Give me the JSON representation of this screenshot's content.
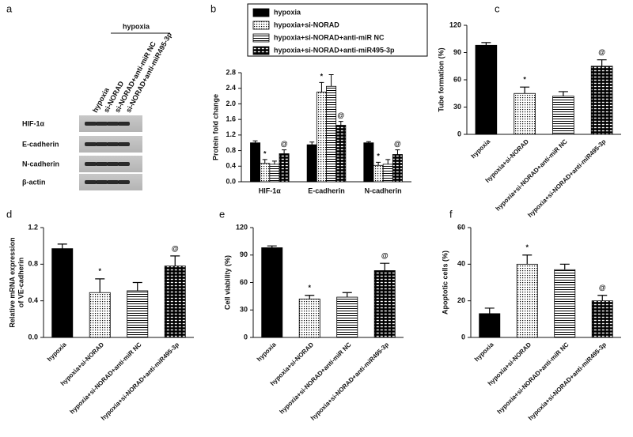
{
  "blot": {
    "panel": "a",
    "group_label": "hypoxia",
    "lanes": [
      "hypoxia",
      "si-NORAD",
      "si-NORAD+anti-miR NC",
      "si-NORAD+anti-miR495-3p"
    ],
    "rows": [
      "HIF-1α",
      "E-cadherin",
      "N-cadherin",
      "β-actin"
    ]
  },
  "chart_data": [
    {
      "type": "bar",
      "panel": "b",
      "ylabel": "Protein fold change",
      "categories": [
        "HIF-1α",
        "E-cadherin",
        "N-cadherin"
      ],
      "series": [
        {
          "name": "hypoxia",
          "color": "#000000",
          "pattern": "solid",
          "values": [
            1.0,
            0.95,
            1.0
          ],
          "errors": [
            0.05,
            0.07,
            0.03
          ]
        },
        {
          "name": "hypoxia+si-NORAD",
          "color": "#000000",
          "pattern": "dots",
          "values": [
            0.47,
            2.3,
            0.42
          ],
          "errors": [
            0.1,
            0.25,
            0.08
          ],
          "annotations": [
            "*",
            "*",
            "*"
          ]
        },
        {
          "name": "hypoxia+si-NORAD+anti-miR NC",
          "color": "#000000",
          "pattern": "hlines",
          "values": [
            0.45,
            2.45,
            0.45
          ],
          "errors": [
            0.08,
            0.3,
            0.12
          ]
        },
        {
          "name": "hypoxia+si-NORAD+anti-miR495-3p",
          "color": "#000000",
          "pattern": "bricks",
          "values": [
            0.72,
            1.45,
            0.7
          ],
          "errors": [
            0.1,
            0.1,
            0.12
          ],
          "annotations": [
            "@",
            "@",
            "@"
          ]
        }
      ],
      "ylim": [
        0,
        2.8
      ],
      "yticks": [
        {
          "value": 0,
          "label": "0.0"
        },
        0.4,
        0.8,
        1.2,
        1.6,
        {
          "value": 2,
          "label": "2.0"
        },
        2.4,
        2.8
      ],
      "legend": "top"
    },
    {
      "type": "bar",
      "panel": "c",
      "ylabel": "Tube formation (%)",
      "categories": [
        "hypoxia",
        "hypoxia+si-NORAD",
        "hypoxia+si-NORAD+anti-miR NC",
        "hypoxia+si-NORAD+anti-miR495-3p"
      ],
      "values": [
        98,
        45,
        42,
        75
      ],
      "errors": [
        3,
        7,
        5,
        7
      ],
      "annotations": [
        null,
        "*",
        null,
        "@"
      ],
      "patterns": [
        "solid",
        "dots",
        "hlines",
        "bricks"
      ],
      "color": "#000000",
      "ylim": [
        0,
        120
      ],
      "yticks": [
        0,
        30,
        60,
        90,
        120
      ]
    },
    {
      "type": "bar",
      "panel": "d",
      "ylabel": [
        "Relative mRNA expression",
        "of VE-cadherin"
      ],
      "categories": [
        "hypoxia",
        "hypoxia+si-NORAD",
        "hypoxia+si-NORAD+anti-miR NC",
        "hypoxia+si-NORAD+anti-miR495-3p"
      ],
      "values": [
        0.97,
        0.49,
        0.51,
        0.78
      ],
      "errors": [
        0.05,
        0.15,
        0.09,
        0.11
      ],
      "annotations": [
        null,
        "*",
        null,
        "@"
      ],
      "patterns": [
        "solid",
        "dots",
        "hlines",
        "bricks"
      ],
      "color": "#000000",
      "ylim": [
        0,
        1.2
      ],
      "yticks": [
        {
          "value": 0,
          "label": "0.0"
        },
        0.4,
        0.8,
        1.2
      ]
    },
    {
      "type": "bar",
      "panel": "e",
      "ylabel": "Cell viability (%)",
      "categories": [
        "hypoxia",
        "hypoxia+si-NORAD",
        "hypoxia+si-NORAD+anti-miR NC",
        "hypoxia+si-NORAD+anti-miR495-3p"
      ],
      "values": [
        98,
        42,
        44,
        73
      ],
      "errors": [
        2,
        4,
        5,
        8
      ],
      "annotations": [
        null,
        "*",
        null,
        "@"
      ],
      "patterns": [
        "solid",
        "dots",
        "hlines",
        "bricks"
      ],
      "color": "#000000",
      "ylim": [
        0,
        120
      ],
      "yticks": [
        0,
        30,
        60,
        90,
        120
      ]
    },
    {
      "type": "bar",
      "panel": "f",
      "ylabel": "Apoptotic cells (%)",
      "categories": [
        "hypoxia",
        "hypoxia+si-NORAD",
        "hypoxia+si-NORAD+anti-miR NC",
        "hypoxia+si-NORAD+anti-miR495-3p"
      ],
      "values": [
        13,
        40,
        37,
        20
      ],
      "errors": [
        3,
        5,
        3,
        3
      ],
      "annotations": [
        null,
        "*",
        null,
        "@"
      ],
      "patterns": [
        "solid",
        "dots",
        "hlines",
        "bricks"
      ],
      "color": "#000000",
      "ylim": [
        0,
        60
      ],
      "yticks": [
        0,
        20,
        40,
        60
      ]
    }
  ]
}
